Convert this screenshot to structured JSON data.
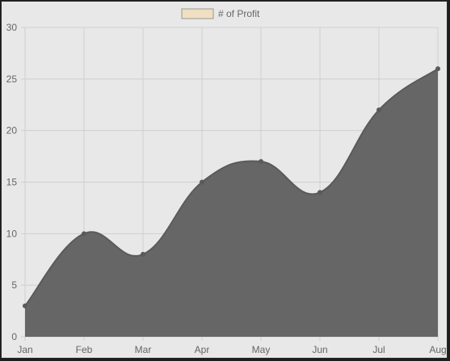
{
  "chart_data": {
    "type": "area",
    "categories": [
      "Jan",
      "Feb",
      "Mar",
      "Apr",
      "May",
      "Jun",
      "Jul",
      "Aug"
    ],
    "series": [
      {
        "name": "# of Profit",
        "values": [
          3,
          10,
          8,
          15,
          17,
          14,
          22,
          26
        ],
        "fill_color": "#666666",
        "line_color": "#5a5a5a",
        "point_color": "#5a5a5a",
        "legend_swatch_fill": "#f0dfc0",
        "legend_swatch_border": "#999999"
      }
    ],
    "ylim": [
      0,
      30
    ],
    "yticks": [
      0,
      5,
      10,
      15,
      20,
      25,
      30
    ],
    "grid": true,
    "legend_position": "top-center",
    "curve": "smooth"
  },
  "colors": {
    "background": "#e8e8e8",
    "gridline": "#cfcfcf",
    "tick_text": "#666666"
  }
}
